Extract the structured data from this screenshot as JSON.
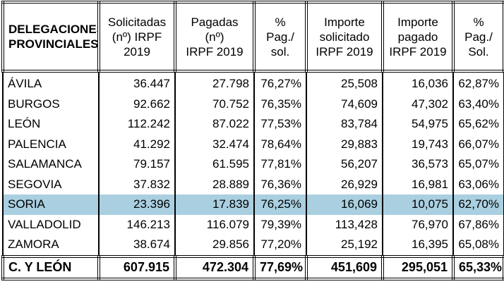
{
  "table": {
    "header": [
      "DELEGACIONES\nPROVINCIALES",
      "Solicitadas\n(nº) IRPF 2019",
      "Pagadas (nº)\nIRPF 2019",
      "% Pag./\nsol.",
      "Importe\nsolicitado\nIRPF 2019",
      "Importe\npagado\nIRPF 2019",
      "% Pag./\nSol."
    ],
    "rows": [
      [
        "ÁVILA",
        "36.447",
        "27.798",
        "76,27%",
        "25,508",
        "16,036",
        "62,87%"
      ],
      [
        "BURGOS",
        "92.662",
        "70.752",
        "76,35%",
        "74,609",
        "47,302",
        "63,40%"
      ],
      [
        "LEÓN",
        "112.242",
        "87.022",
        "77,53%",
        "83,784",
        "54,975",
        "65,62%"
      ],
      [
        "PALENCIA",
        "41.292",
        "32.474",
        "78,64%",
        "29,883",
        "19,743",
        "66,07%"
      ],
      [
        "SALAMANCA",
        "79.157",
        "61.595",
        "77,81%",
        "56,207",
        "36,573",
        "65,07%"
      ],
      [
        "SEGOVIA",
        "37.832",
        "28.889",
        "76,36%",
        "26,929",
        "16,981",
        "63,06%"
      ],
      [
        "SORIA",
        "23.396",
        "17.839",
        "76,25%",
        "16,069",
        "10,075",
        "62,70%"
      ],
      [
        "VALLADOLID",
        "146.213",
        "116.079",
        "79,39%",
        "113,428",
        "76,970",
        "67,86%"
      ],
      [
        "ZAMORA",
        "38.674",
        "29.856",
        "77,20%",
        "25,192",
        "16,395",
        "65,08%"
      ]
    ],
    "total": [
      "C. Y LEÓN",
      "607.915",
      "472.304",
      "77,69%",
      "451,609",
      "295,051",
      "65,33%"
    ]
  }
}
